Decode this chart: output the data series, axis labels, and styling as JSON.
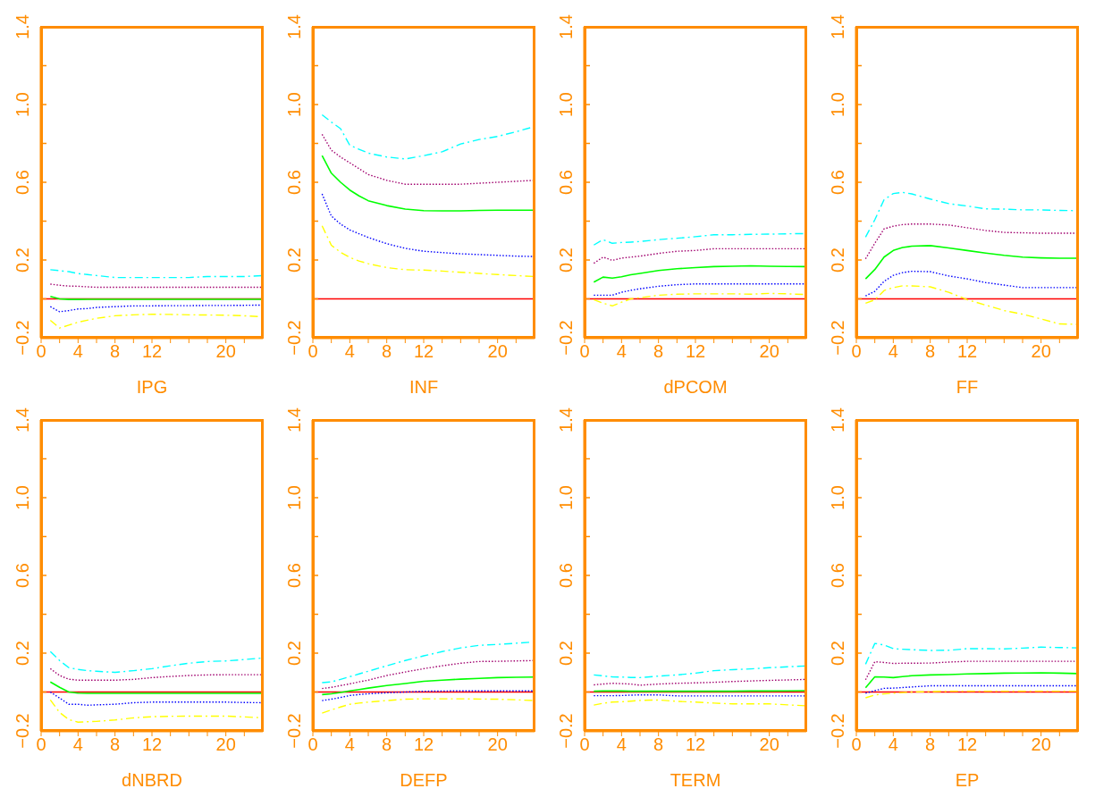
{
  "chart_data": [
    {
      "type": "line",
      "xlabel": "IPG",
      "x": [
        1,
        2,
        3,
        4,
        5,
        6,
        8,
        10,
        12,
        14,
        16,
        18,
        20,
        22,
        24
      ],
      "xlim": [
        0,
        24
      ],
      "xticks": [
        0,
        {
          "value": 2,
          "label": null
        },
        4,
        {
          "value": 6,
          "label": null
        },
        8,
        {
          "value": 10,
          "label": null
        },
        12,
        {
          "value": 14,
          "label": null
        },
        {
          "value": 16,
          "label": null
        },
        {
          "value": 18,
          "label": null
        },
        20,
        {
          "value": 22,
          "label": null
        }
      ],
      "ylim": [
        -0.2,
        1.4
      ],
      "yticks": [
        {
          "value": -0.2,
          "label": "−0.2"
        },
        {
          "value": 0,
          "label": null
        },
        0.2,
        {
          "value": 0.4,
          "label": null
        },
        0.6,
        {
          "value": 0.8,
          "label": null
        },
        {
          "value": 1,
          "label": "1.0"
        },
        {
          "value": 1.2,
          "label": null
        },
        1.4
      ],
      "ref_lines": [
        {
          "axis": "y",
          "value": 0,
          "color": "#ff0000"
        }
      ],
      "series": [
        {
          "color": "#00ffff",
          "line_style": "dashed",
          "values": [
            0.15,
            0.145,
            0.14,
            0.13,
            0.125,
            0.12,
            0.11,
            0.11,
            0.11,
            0.11,
            0.11,
            0.115,
            0.115,
            0.115,
            0.12
          ]
        },
        {
          "color": "#a0006e",
          "line_style": "dotted",
          "values": [
            0.076,
            0.07,
            0.066,
            0.065,
            0.062,
            0.06,
            0.06,
            0.06,
            0.06,
            0.06,
            0.06,
            0.06,
            0.06,
            0.06,
            0.06
          ]
        },
        {
          "color": "#00ff00",
          "line_style": "solid",
          "values": [
            0.013,
            0,
            -0.003,
            -0.003,
            -0.002,
            -0.002,
            -0.002,
            -0.002,
            -0.002,
            -0.002,
            -0.002,
            -0.002,
            -0.002,
            -0.002,
            -0.002
          ]
        },
        {
          "color": "#0000ff",
          "line_style": "dotted",
          "values": [
            -0.04,
            -0.066,
            -0.06,
            -0.052,
            -0.05,
            -0.044,
            -0.04,
            -0.036,
            -0.036,
            -0.035,
            -0.035,
            -0.034,
            -0.034,
            -0.033,
            -0.032
          ]
        },
        {
          "color": "#ffff00",
          "line_style": "dashed",
          "values": [
            -0.11,
            -0.15,
            -0.135,
            -0.12,
            -0.11,
            -0.1,
            -0.087,
            -0.082,
            -0.079,
            -0.08,
            -0.082,
            -0.083,
            -0.084,
            -0.087,
            -0.092
          ]
        }
      ]
    },
    {
      "type": "line",
      "xlabel": "INF",
      "x": [
        1,
        2,
        3,
        4,
        5,
        6,
        8,
        10,
        12,
        14,
        16,
        18,
        20,
        22,
        24
      ],
      "xlim": [
        0,
        24
      ],
      "xticks": [
        0,
        {
          "value": 2,
          "label": null
        },
        4,
        {
          "value": 6,
          "label": null
        },
        8,
        {
          "value": 10,
          "label": null
        },
        12,
        {
          "value": 14,
          "label": null
        },
        {
          "value": 16,
          "label": null
        },
        {
          "value": 18,
          "label": null
        },
        20,
        {
          "value": 22,
          "label": null
        }
      ],
      "ylim": [
        -0.2,
        1.4
      ],
      "yticks": [
        {
          "value": -0.2,
          "label": "−0.2"
        },
        {
          "value": 0,
          "label": null
        },
        0.2,
        {
          "value": 0.4,
          "label": null
        },
        0.6,
        {
          "value": 0.8,
          "label": null
        },
        {
          "value": 1,
          "label": "1.0"
        },
        {
          "value": 1.2,
          "label": null
        },
        1.4
      ],
      "ref_lines": [
        {
          "axis": "y",
          "value": 0,
          "color": "#ff0000"
        }
      ],
      "series": [
        {
          "color": "#00ffff",
          "line_style": "dashed",
          "values": [
            0.947,
            0.91,
            0.876,
            0.79,
            0.77,
            0.75,
            0.73,
            0.72,
            0.737,
            0.757,
            0.797,
            0.82,
            0.836,
            0.86,
            0.887
          ]
        },
        {
          "color": "#a0006e",
          "line_style": "dotted",
          "values": [
            0.847,
            0.765,
            0.73,
            0.7,
            0.67,
            0.64,
            0.61,
            0.59,
            0.59,
            0.59,
            0.59,
            0.595,
            0.6,
            0.605,
            0.61
          ]
        },
        {
          "color": "#00ff00",
          "line_style": "solid",
          "values": [
            0.737,
            0.647,
            0.6,
            0.56,
            0.53,
            0.505,
            0.48,
            0.462,
            0.454,
            0.453,
            0.453,
            0.455,
            0.456,
            0.456,
            0.456
          ]
        },
        {
          "color": "#0000ff",
          "line_style": "dotted",
          "values": [
            0.54,
            0.426,
            0.385,
            0.355,
            0.335,
            0.316,
            0.284,
            0.26,
            0.245,
            0.238,
            0.232,
            0.228,
            0.224,
            0.22,
            0.218
          ]
        },
        {
          "color": "#ffff00",
          "line_style": "dashed",
          "values": [
            0.376,
            0.276,
            0.24,
            0.213,
            0.195,
            0.181,
            0.161,
            0.15,
            0.148,
            0.143,
            0.137,
            0.131,
            0.125,
            0.12,
            0.115
          ]
        }
      ]
    },
    {
      "type": "line",
      "xlabel": "dPCOM",
      "x": [
        1,
        2,
        3,
        4,
        5,
        6,
        8,
        10,
        12,
        14,
        16,
        18,
        20,
        22,
        24
      ],
      "xlim": [
        0,
        24
      ],
      "xticks": [
        0,
        {
          "value": 2,
          "label": null
        },
        4,
        {
          "value": 6,
          "label": null
        },
        8,
        {
          "value": 10,
          "label": null
        },
        12,
        {
          "value": 14,
          "label": null
        },
        {
          "value": 16,
          "label": null
        },
        {
          "value": 18,
          "label": null
        },
        20,
        {
          "value": 22,
          "label": null
        }
      ],
      "ylim": [
        -0.2,
        1.4
      ],
      "yticks": [
        {
          "value": -0.2,
          "label": "−0.2"
        },
        {
          "value": 0,
          "label": null
        },
        0.2,
        {
          "value": 0.4,
          "label": null
        },
        0.6,
        {
          "value": 0.8,
          "label": null
        },
        {
          "value": 1,
          "label": "1.0"
        },
        {
          "value": 1.2,
          "label": null
        },
        1.4
      ],
      "ref_lines": [
        {
          "axis": "y",
          "value": 0,
          "color": "#ff0000"
        }
      ],
      "series": [
        {
          "color": "#00ffff",
          "line_style": "dashed",
          "values": [
            0.277,
            0.305,
            0.286,
            0.29,
            0.292,
            0.295,
            0.305,
            0.312,
            0.32,
            0.33,
            0.33,
            0.332,
            0.333,
            0.335,
            0.336
          ]
        },
        {
          "color": "#a0006e",
          "line_style": "dotted",
          "values": [
            0.183,
            0.215,
            0.198,
            0.21,
            0.215,
            0.22,
            0.234,
            0.245,
            0.249,
            0.258,
            0.258,
            0.258,
            0.258,
            0.258,
            0.258
          ]
        },
        {
          "color": "#00ff00",
          "line_style": "solid",
          "values": [
            0.086,
            0.112,
            0.107,
            0.114,
            0.124,
            0.131,
            0.146,
            0.155,
            0.161,
            0.166,
            0.168,
            0.17,
            0.168,
            0.167,
            0.166
          ]
        },
        {
          "color": "#0000ff",
          "line_style": "dotted",
          "values": [
            0.019,
            0.019,
            0.019,
            0.034,
            0.044,
            0.052,
            0.065,
            0.073,
            0.077,
            0.077,
            0.077,
            0.077,
            0.077,
            0.077,
            0.077
          ]
        },
        {
          "color": "#ffff00",
          "line_style": "dashed",
          "values": [
            -0.004,
            -0.022,
            -0.036,
            -0.017,
            0,
            0.006,
            0.019,
            0.024,
            0.026,
            0.026,
            0.026,
            0.024,
            0.028,
            0.026,
            0.022
          ]
        }
      ]
    },
    {
      "type": "line",
      "xlabel": "FF",
      "x": [
        1,
        2,
        3,
        4,
        5,
        6,
        8,
        10,
        12,
        14,
        16,
        18,
        20,
        22,
        24
      ],
      "xlim": [
        0,
        24
      ],
      "xticks": [
        0,
        {
          "value": 2,
          "label": null
        },
        4,
        {
          "value": 6,
          "label": null
        },
        8,
        {
          "value": 10,
          "label": null
        },
        12,
        {
          "value": 14,
          "label": null
        },
        {
          "value": 16,
          "label": null
        },
        {
          "value": 18,
          "label": null
        },
        20,
        {
          "value": 22,
          "label": null
        }
      ],
      "ylim": [
        -0.2,
        1.4
      ],
      "yticks": [
        {
          "value": -0.2,
          "label": "−0.2"
        },
        {
          "value": 0,
          "label": null
        },
        0.2,
        {
          "value": 0.4,
          "label": null
        },
        0.6,
        {
          "value": 0.8,
          "label": null
        },
        {
          "value": 1,
          "label": "1.0"
        },
        {
          "value": 1.2,
          "label": null
        },
        1.4
      ],
      "ref_lines": [
        {
          "axis": "y",
          "value": 0,
          "color": "#ff0000"
        }
      ],
      "series": [
        {
          "color": "#00ffff",
          "line_style": "dashed",
          "values": [
            0.318,
            0.407,
            0.51,
            0.542,
            0.548,
            0.54,
            0.514,
            0.49,
            0.478,
            0.463,
            0.462,
            0.458,
            0.458,
            0.455,
            0.454
          ]
        },
        {
          "color": "#a0006e",
          "line_style": "dotted",
          "values": [
            0.206,
            0.286,
            0.36,
            0.374,
            0.382,
            0.385,
            0.385,
            0.38,
            0.366,
            0.352,
            0.342,
            0.34,
            0.338,
            0.338,
            0.338
          ]
        },
        {
          "color": "#00ff00",
          "line_style": "solid",
          "values": [
            0.103,
            0.151,
            0.215,
            0.249,
            0.264,
            0.271,
            0.274,
            0.262,
            0.249,
            0.236,
            0.224,
            0.215,
            0.211,
            0.209,
            0.209
          ]
        },
        {
          "color": "#0000ff",
          "line_style": "dotted",
          "values": [
            0.015,
            0.039,
            0.09,
            0.121,
            0.135,
            0.142,
            0.14,
            0.118,
            0.103,
            0.084,
            0.071,
            0.058,
            0.058,
            0.058,
            0.058
          ]
        },
        {
          "color": "#ffff00",
          "line_style": "dashed",
          "values": [
            -0.022,
            -0.005,
            0.043,
            0.058,
            0.067,
            0.067,
            0.062,
            0.034,
            -0.004,
            -0.032,
            -0.06,
            -0.079,
            -0.103,
            -0.129,
            -0.131
          ]
        }
      ]
    },
    {
      "type": "line",
      "xlabel": "dNBRD",
      "x": [
        1,
        2,
        3,
        4,
        5,
        6,
        8,
        10,
        12,
        14,
        16,
        18,
        20,
        22,
        24
      ],
      "xlim": [
        0,
        24
      ],
      "xticks": [
        0,
        {
          "value": 2,
          "label": null
        },
        4,
        {
          "value": 6,
          "label": null
        },
        8,
        {
          "value": 10,
          "label": null
        },
        12,
        {
          "value": 14,
          "label": null
        },
        {
          "value": 16,
          "label": null
        },
        {
          "value": 18,
          "label": null
        },
        20,
        {
          "value": 22,
          "label": null
        }
      ],
      "ylim": [
        -0.2,
        1.4
      ],
      "yticks": [
        {
          "value": -0.2,
          "label": "−0.2"
        },
        {
          "value": 0,
          "label": null
        },
        0.2,
        {
          "value": 0.4,
          "label": null
        },
        0.6,
        {
          "value": 0.8,
          "label": null
        },
        {
          "value": 1,
          "label": "1.0"
        },
        {
          "value": 1.2,
          "label": null
        },
        1.4
      ],
      "ref_lines": [
        {
          "axis": "y",
          "value": 0,
          "color": "#ff0000"
        }
      ],
      "series": [
        {
          "color": "#00ffff",
          "line_style": "dashed",
          "values": [
            0.208,
            0.162,
            0.125,
            0.116,
            0.11,
            0.107,
            0.101,
            0.11,
            0.12,
            0.135,
            0.148,
            0.157,
            0.16,
            0.167,
            0.175
          ]
        },
        {
          "color": "#a0006e",
          "line_style": "dotted",
          "values": [
            0.12,
            0.085,
            0.066,
            0.061,
            0.061,
            0.061,
            0.061,
            0.065,
            0.074,
            0.08,
            0.085,
            0.088,
            0.089,
            0.089,
            0.089
          ]
        },
        {
          "color": "#00ff00",
          "line_style": "solid",
          "values": [
            0.052,
            0.024,
            0,
            -0.006,
            -0.007,
            -0.007,
            -0.007,
            -0.007,
            -0.007,
            -0.007,
            -0.007,
            -0.007,
            -0.007,
            -0.007,
            -0.007
          ]
        },
        {
          "color": "#0000ff",
          "line_style": "dotted",
          "values": [
            0,
            -0.031,
            -0.063,
            -0.063,
            -0.068,
            -0.066,
            -0.063,
            -0.055,
            -0.052,
            -0.052,
            -0.052,
            -0.052,
            -0.052,
            -0.054,
            -0.055
          ]
        },
        {
          "color": "#ffff00",
          "line_style": "dashed",
          "values": [
            -0.041,
            -0.105,
            -0.142,
            -0.155,
            -0.153,
            -0.151,
            -0.144,
            -0.133,
            -0.127,
            -0.125,
            -0.124,
            -0.124,
            -0.124,
            -0.128,
            -0.133
          ]
        }
      ]
    },
    {
      "type": "line",
      "xlabel": "DEFP",
      "x": [
        1,
        2,
        3,
        4,
        5,
        6,
        8,
        10,
        12,
        14,
        16,
        18,
        20,
        22,
        24
      ],
      "xlim": [
        0,
        24
      ],
      "xticks": [
        0,
        {
          "value": 2,
          "label": null
        },
        4,
        {
          "value": 6,
          "label": null
        },
        8,
        {
          "value": 10,
          "label": null
        },
        12,
        {
          "value": 14,
          "label": null
        },
        {
          "value": 16,
          "label": null
        },
        {
          "value": 18,
          "label": null
        },
        20,
        {
          "value": 22,
          "label": null
        }
      ],
      "ylim": [
        -0.2,
        1.4
      ],
      "yticks": [
        {
          "value": -0.2,
          "label": "−0.2"
        },
        {
          "value": 0,
          "label": null
        },
        0.2,
        {
          "value": 0.4,
          "label": null
        },
        0.6,
        {
          "value": 0.8,
          "label": null
        },
        {
          "value": 1,
          "label": "1.0"
        },
        {
          "value": 1.2,
          "label": null
        },
        1.4
      ],
      "ref_lines": [
        {
          "axis": "y",
          "value": 0,
          "color": "#ff0000"
        }
      ],
      "series": [
        {
          "color": "#00ffff",
          "line_style": "dashed",
          "values": [
            0.048,
            0.052,
            0.065,
            0.079,
            0.093,
            0.107,
            0.135,
            0.162,
            0.186,
            0.208,
            0.227,
            0.24,
            0.245,
            0.251,
            0.258
          ]
        },
        {
          "color": "#a0006e",
          "line_style": "dotted",
          "values": [
            0.018,
            0.024,
            0.033,
            0.042,
            0.052,
            0.061,
            0.085,
            0.103,
            0.12,
            0.135,
            0.148,
            0.157,
            0.158,
            0.16,
            0.162
          ]
        },
        {
          "color": "#00ff00",
          "line_style": "solid",
          "values": [
            -0.013,
            -0.009,
            -0.002,
            0.006,
            0.013,
            0.02,
            0.033,
            0.044,
            0.055,
            0.061,
            0.066,
            0.07,
            0.074,
            0.076,
            0.077
          ]
        },
        {
          "color": "#0000ff",
          "line_style": "dotted",
          "values": [
            -0.044,
            -0.037,
            -0.028,
            -0.018,
            -0.013,
            -0.009,
            -0.004,
            0,
            0.004,
            0.005,
            0.006,
            0.006,
            0.006,
            0.006,
            0.006
          ]
        },
        {
          "color": "#ffff00",
          "line_style": "dashed",
          "values": [
            -0.109,
            -0.092,
            -0.077,
            -0.063,
            -0.057,
            -0.052,
            -0.044,
            -0.037,
            -0.035,
            -0.035,
            -0.035,
            -0.036,
            -0.037,
            -0.04,
            -0.044
          ]
        }
      ]
    },
    {
      "type": "line",
      "xlabel": "TERM",
      "x": [
        1,
        2,
        3,
        4,
        5,
        6,
        8,
        10,
        12,
        14,
        16,
        18,
        20,
        22,
        24
      ],
      "xlim": [
        0,
        24
      ],
      "xticks": [
        0,
        {
          "value": 2,
          "label": null
        },
        4,
        {
          "value": 6,
          "label": null
        },
        8,
        {
          "value": 10,
          "label": null
        },
        12,
        {
          "value": 14,
          "label": null
        },
        {
          "value": 16,
          "label": null
        },
        {
          "value": 18,
          "label": null
        },
        20,
        {
          "value": 22,
          "label": null
        }
      ],
      "ylim": [
        -0.2,
        1.4
      ],
      "yticks": [
        {
          "value": -0.2,
          "label": "−0.2"
        },
        {
          "value": 0,
          "label": null
        },
        0.2,
        {
          "value": 0.4,
          "label": null
        },
        0.6,
        {
          "value": 0.8,
          "label": null
        },
        {
          "value": 1,
          "label": "1.0"
        },
        {
          "value": 1.2,
          "label": null
        },
        1.4
      ],
      "ref_lines": [
        {
          "axis": "y",
          "value": 0,
          "color": "#ff0000"
        }
      ],
      "series": [
        {
          "color": "#00ffff",
          "line_style": "dashed",
          "values": [
            0.088,
            0.083,
            0.078,
            0.077,
            0.075,
            0.074,
            0.082,
            0.088,
            0.097,
            0.11,
            0.115,
            0.119,
            0.125,
            0.13,
            0.134
          ]
        },
        {
          "color": "#a0006e",
          "line_style": "dotted",
          "values": [
            0.037,
            0.041,
            0.045,
            0.043,
            0.041,
            0.035,
            0.041,
            0.045,
            0.047,
            0.05,
            0.054,
            0.057,
            0.06,
            0.062,
            0.065
          ]
        },
        {
          "color": "#00ff00",
          "line_style": "solid",
          "values": [
            0.004,
            0.005,
            0.006,
            0.005,
            0.004,
            0.004,
            0.004,
            0.004,
            0.004,
            0.004,
            0.004,
            0.005,
            0.005,
            0.006,
            0.007
          ]
        },
        {
          "color": "#0000ff",
          "line_style": "dotted",
          "values": [
            -0.019,
            -0.019,
            -0.019,
            -0.018,
            -0.016,
            -0.015,
            -0.015,
            -0.02,
            -0.02,
            -0.02,
            -0.02,
            -0.02,
            -0.02,
            -0.02,
            -0.02
          ]
        },
        {
          "color": "#ffff00",
          "line_style": "dashed",
          "values": [
            -0.067,
            -0.058,
            -0.052,
            -0.05,
            -0.047,
            -0.043,
            -0.041,
            -0.048,
            -0.052,
            -0.057,
            -0.061,
            -0.061,
            -0.061,
            -0.066,
            -0.071
          ]
        }
      ]
    },
    {
      "type": "line",
      "xlabel": "EP",
      "x": [
        1,
        2,
        3,
        4,
        5,
        6,
        8,
        10,
        12,
        14,
        16,
        18,
        20,
        22,
        24
      ],
      "xlim": [
        0,
        24
      ],
      "xticks": [
        0,
        {
          "value": 2,
          "label": null
        },
        4,
        {
          "value": 6,
          "label": null
        },
        8,
        {
          "value": 10,
          "label": null
        },
        12,
        {
          "value": 14,
          "label": null
        },
        {
          "value": 16,
          "label": null
        },
        {
          "value": 18,
          "label": null
        },
        20,
        {
          "value": 22,
          "label": null
        }
      ],
      "ylim": [
        -0.2,
        1.4
      ],
      "yticks": [
        {
          "value": -0.2,
          "label": "−0.2"
        },
        {
          "value": 0,
          "label": null
        },
        0.2,
        {
          "value": 0.4,
          "label": null
        },
        0.6,
        {
          "value": 0.8,
          "label": null
        },
        {
          "value": 1,
          "label": "1.0"
        },
        {
          "value": 1.2,
          "label": null
        },
        1.4
      ],
      "ref_lines": [
        {
          "axis": "y",
          "value": 0,
          "color": "#ff0000"
        }
      ],
      "series": [
        {
          "color": "#00ffff",
          "line_style": "dashed",
          "values": [
            0.143,
            0.25,
            0.242,
            0.223,
            0.22,
            0.218,
            0.214,
            0.215,
            0.223,
            0.223,
            0.222,
            0.226,
            0.231,
            0.229,
            0.227
          ]
        },
        {
          "color": "#a0006e",
          "line_style": "dotted",
          "values": [
            0.063,
            0.156,
            0.152,
            0.147,
            0.148,
            0.148,
            0.149,
            0.154,
            0.158,
            0.158,
            0.158,
            0.158,
            0.158,
            0.158,
            0.158
          ]
        },
        {
          "color": "#00ff00",
          "line_style": "solid",
          "values": [
            0.022,
            0.078,
            0.077,
            0.074,
            0.079,
            0.084,
            0.088,
            0.09,
            0.093,
            0.095,
            0.097,
            0.098,
            0.099,
            0.097,
            0.095
          ]
        },
        {
          "color": "#0000ff",
          "line_style": "dotted",
          "values": [
            -0.006,
            0.007,
            0.019,
            0.02,
            0.023,
            0.026,
            0.032,
            0.032,
            0.032,
            0.032,
            0.032,
            0.032,
            0.032,
            0.032,
            0.032
          ]
        },
        {
          "color": "#ffff00",
          "line_style": "dashed",
          "values": [
            -0.03,
            -0.015,
            -0.01,
            -0.006,
            -0.003,
            0,
            0.002,
            0.004,
            0.004,
            0.004,
            0.004,
            0.004,
            0.004,
            0.004,
            0.004
          ]
        }
      ]
    }
  ]
}
